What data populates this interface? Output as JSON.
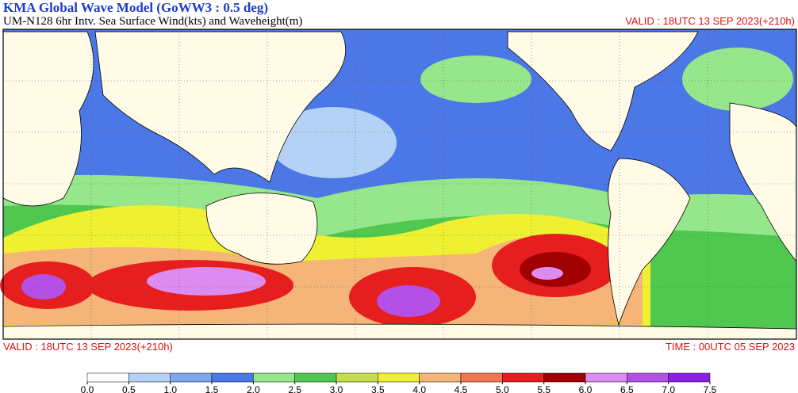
{
  "header": {
    "title": "KMA  Global Wave Model (GoWW3 : 0.5 deg)",
    "subtitle": "UM-N128  6hr Intv. Sea Surface Wind(kts) and Waveheight(m)",
    "valid_top": "VALID : 18UTC 13 SEP 2023(+210h)"
  },
  "footer": {
    "valid": "VALID : 18UTC 13 SEP 2023(+210h)",
    "time": "TIME : 00UTC 05 SEP 2023"
  },
  "colorbar": {
    "ticks": [
      {
        "value": 0,
        "label": "0.0"
      },
      0.5,
      {
        "value": 1,
        "label": "1.0"
      },
      1.5,
      {
        "value": 2,
        "label": "2.0"
      },
      2.5,
      {
        "value": 3,
        "label": "3.0"
      },
      3.5,
      {
        "value": 4,
        "label": "4.0"
      },
      4.5,
      {
        "value": 5,
        "label": "5.0"
      },
      5.5,
      {
        "value": 6,
        "label": "6.0"
      },
      6.5,
      {
        "value": 7,
        "label": "7.0"
      },
      7.5
    ],
    "colors": [
      "#ffffff",
      "#b4d2f5",
      "#7ca6f0",
      "#4b78e6",
      "#96e68c",
      "#50c850",
      "#c8dc50",
      "#f0f032",
      "#f5b478",
      "#f07850",
      "#e61e1e",
      "#a00000",
      "#dc8cf0",
      "#b450e6",
      "#8c1ee6"
    ]
  }
}
